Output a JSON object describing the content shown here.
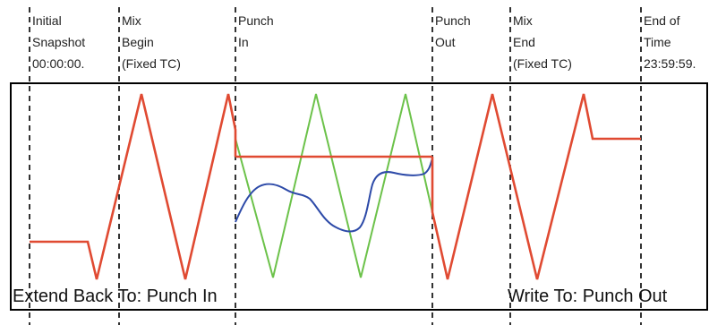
{
  "markers": [
    {
      "id": "initial-snapshot",
      "lines": [
        "Initial",
        "Snapshot",
        "00:00:00."
      ]
    },
    {
      "id": "mix-begin",
      "lines": [
        "Mix",
        "Begin",
        "(Fixed TC)"
      ]
    },
    {
      "id": "punch-in",
      "lines": [
        "Punch",
        "In"
      ]
    },
    {
      "id": "punch-out",
      "lines": [
        "Punch",
        "Out"
      ]
    },
    {
      "id": "mix-end",
      "lines": [
        "Mix",
        "End",
        "(Fixed TC)"
      ]
    },
    {
      "id": "end-of-time",
      "lines": [
        "End of",
        "Time",
        "23:59:59."
      ]
    }
  ],
  "captions": {
    "left": "Extend Back To: Punch In",
    "right": "Write To: Punch Out"
  },
  "colors": {
    "automation": "#e04a32",
    "original_pass": "#6cc24a",
    "new_pass": "#2d4aa8"
  }
}
